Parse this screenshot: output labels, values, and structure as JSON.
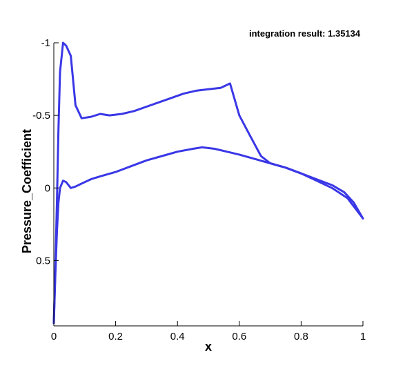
{
  "chart_data": {
    "type": "line",
    "xlabel": "x",
    "ylabel": "Pressure_Coefficient",
    "annotation": "integration result: 1.35134",
    "xlim": [
      0,
      1
    ],
    "ylim": [
      -1.0,
      0.95
    ],
    "y_inverted": true,
    "grid": false,
    "xticks": [
      0,
      0.2,
      0.4,
      0.6,
      0.8,
      1
    ],
    "xtick_labels": [
      "0",
      "0.2",
      "0.4",
      "0.6",
      "0.8",
      "1"
    ],
    "yticks": [
      -1,
      -0.5,
      0,
      0.5
    ],
    "ytick_labels": [
      "-1",
      "-0.5",
      "0",
      "0.5"
    ],
    "line_color": "#3a37e6",
    "series": [
      {
        "x": [
          0.0,
          0.005,
          0.01,
          0.015,
          0.02,
          0.03,
          0.04,
          0.055,
          0.07,
          0.09,
          0.12,
          0.15,
          0.18,
          0.22,
          0.26,
          0.3,
          0.34,
          0.38,
          0.42,
          0.46,
          0.5,
          0.54,
          0.57,
          0.6,
          0.63,
          0.67,
          0.7,
          0.75,
          0.8,
          0.85,
          0.9,
          0.95,
          1.0
        ],
        "y": [
          0.93,
          0.55,
          0.1,
          -0.4,
          -0.8,
          -1.0,
          -0.98,
          -0.91,
          -0.57,
          -0.48,
          -0.49,
          -0.51,
          -0.5,
          -0.51,
          -0.53,
          -0.56,
          -0.59,
          -0.62,
          -0.65,
          -0.67,
          -0.68,
          -0.69,
          -0.72,
          -0.5,
          -0.38,
          -0.22,
          -0.17,
          -0.14,
          -0.1,
          -0.05,
          0.0,
          0.07,
          0.21
        ]
      },
      {
        "x": [
          0.0,
          0.005,
          0.01,
          0.015,
          0.02,
          0.03,
          0.04,
          0.055,
          0.07,
          0.09,
          0.12,
          0.15,
          0.2,
          0.25,
          0.3,
          0.35,
          0.4,
          0.45,
          0.48,
          0.52,
          0.56,
          0.6,
          0.65,
          0.7,
          0.75,
          0.8,
          0.85,
          0.9,
          0.94,
          0.97,
          1.0
        ],
        "y": [
          0.93,
          0.6,
          0.3,
          0.1,
          0.0,
          -0.05,
          -0.04,
          0.0,
          -0.01,
          -0.03,
          -0.06,
          -0.08,
          -0.11,
          -0.15,
          -0.19,
          -0.22,
          -0.25,
          -0.27,
          -0.28,
          -0.27,
          -0.25,
          -0.23,
          -0.2,
          -0.17,
          -0.14,
          -0.1,
          -0.06,
          -0.02,
          0.03,
          0.1,
          0.21
        ]
      }
    ]
  }
}
